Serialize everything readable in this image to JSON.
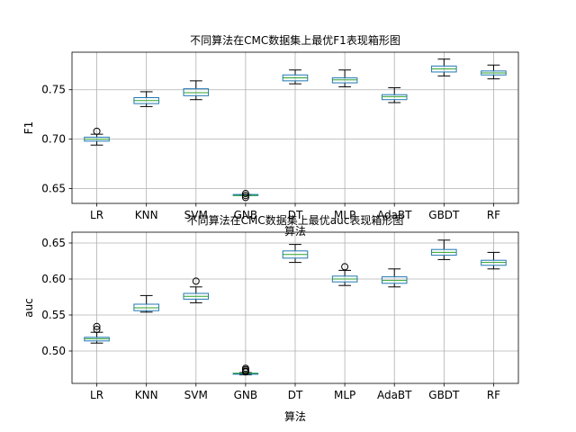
{
  "chart_data": [
    {
      "type": "box",
      "title": "不同算法在CMC数据集上最优F1表现箱形图",
      "xlabel": "算法",
      "ylabel": "F1",
      "ylim": [
        0.635,
        0.788
      ],
      "yticks": [
        "0.65",
        "0.70",
        "0.75"
      ],
      "ytick_values": [
        0.65,
        0.7,
        0.75
      ],
      "grid": true,
      "categories": [
        "LR",
        "KNN",
        "SVM",
        "GNB",
        "DT",
        "MLP",
        "AdaBT",
        "GBDT",
        "RF"
      ],
      "boxes": [
        {
          "label": "LR",
          "whislo": 0.694,
          "q1": 0.698,
          "med": 0.7,
          "q3": 0.702,
          "whishi": 0.705,
          "fliers": [
            0.708
          ]
        },
        {
          "label": "KNN",
          "whislo": 0.733,
          "q1": 0.736,
          "med": 0.739,
          "q3": 0.742,
          "whishi": 0.748,
          "fliers": []
        },
        {
          "label": "SVM",
          "whislo": 0.74,
          "q1": 0.744,
          "med": 0.747,
          "q3": 0.751,
          "whishi": 0.759,
          "fliers": []
        },
        {
          "label": "GNB",
          "whislo": 0.643,
          "q1": 0.643,
          "med": 0.643,
          "q3": 0.644,
          "whishi": 0.644,
          "fliers": [
            0.645,
            0.643,
            0.641
          ]
        },
        {
          "label": "DT",
          "whislo": 0.756,
          "q1": 0.759,
          "med": 0.762,
          "q3": 0.765,
          "whishi": 0.77,
          "fliers": []
        },
        {
          "label": "MLP",
          "whislo": 0.753,
          "q1": 0.757,
          "med": 0.76,
          "q3": 0.762,
          "whishi": 0.77,
          "fliers": []
        },
        {
          "label": "AdaBT",
          "whislo": 0.737,
          "q1": 0.74,
          "med": 0.743,
          "q3": 0.745,
          "whishi": 0.752,
          "fliers": []
        },
        {
          "label": "GBDT",
          "whislo": 0.764,
          "q1": 0.768,
          "med": 0.771,
          "q3": 0.774,
          "whishi": 0.781,
          "fliers": []
        },
        {
          "label": "RF",
          "whislo": 0.761,
          "q1": 0.765,
          "med": 0.767,
          "q3": 0.769,
          "whishi": 0.775,
          "fliers": []
        }
      ]
    },
    {
      "type": "box",
      "title": "不同算法在CMC数据集上最优auc表现箱形图",
      "xlabel": "算法",
      "ylabel": "auc",
      "ylim": [
        0.455,
        0.665
      ],
      "yticks": [
        "0.50",
        "0.55",
        "0.60",
        "0.65"
      ],
      "ytick_values": [
        0.5,
        0.55,
        0.6,
        0.65
      ],
      "grid": true,
      "categories": [
        "LR",
        "KNN",
        "SVM",
        "GNB",
        "DT",
        "MLP",
        "AdaBT",
        "GBDT",
        "RF"
      ],
      "boxes": [
        {
          "label": "LR",
          "whislo": 0.511,
          "q1": 0.514,
          "med": 0.517,
          "q3": 0.519,
          "whishi": 0.526,
          "fliers": [
            0.534,
            0.53
          ]
        },
        {
          "label": "KNN",
          "whislo": 0.554,
          "q1": 0.556,
          "med": 0.56,
          "q3": 0.565,
          "whishi": 0.577,
          "fliers": []
        },
        {
          "label": "SVM",
          "whislo": 0.567,
          "q1": 0.572,
          "med": 0.576,
          "q3": 0.58,
          "whishi": 0.589,
          "fliers": [
            0.597
          ]
        },
        {
          "label": "GNB",
          "whislo": 0.467,
          "q1": 0.468,
          "med": 0.469,
          "q3": 0.469,
          "whishi": 0.47,
          "fliers": [
            0.476,
            0.474,
            0.472,
            0.471
          ]
        },
        {
          "label": "DT",
          "whislo": 0.623,
          "q1": 0.629,
          "med": 0.634,
          "q3": 0.639,
          "whishi": 0.648,
          "fliers": []
        },
        {
          "label": "MLP",
          "whislo": 0.591,
          "q1": 0.596,
          "med": 0.6,
          "q3": 0.604,
          "whishi": 0.612,
          "fliers": [
            0.617
          ]
        },
        {
          "label": "AdaBT",
          "whislo": 0.589,
          "q1": 0.594,
          "med": 0.598,
          "q3": 0.603,
          "whishi": 0.614,
          "fliers": []
        },
        {
          "label": "GBDT",
          "whislo": 0.627,
          "q1": 0.633,
          "med": 0.637,
          "q3": 0.641,
          "whishi": 0.654,
          "fliers": []
        },
        {
          "label": "RF",
          "whislo": 0.614,
          "q1": 0.619,
          "med": 0.623,
          "q3": 0.626,
          "whishi": 0.637,
          "fliers": []
        }
      ]
    }
  ],
  "colors": {
    "box": "#1f77b4",
    "median": "#2ca02c",
    "whisker": "#000000",
    "flier": "#000000",
    "grid": "#b0b0b0",
    "axes": "#000000"
  }
}
